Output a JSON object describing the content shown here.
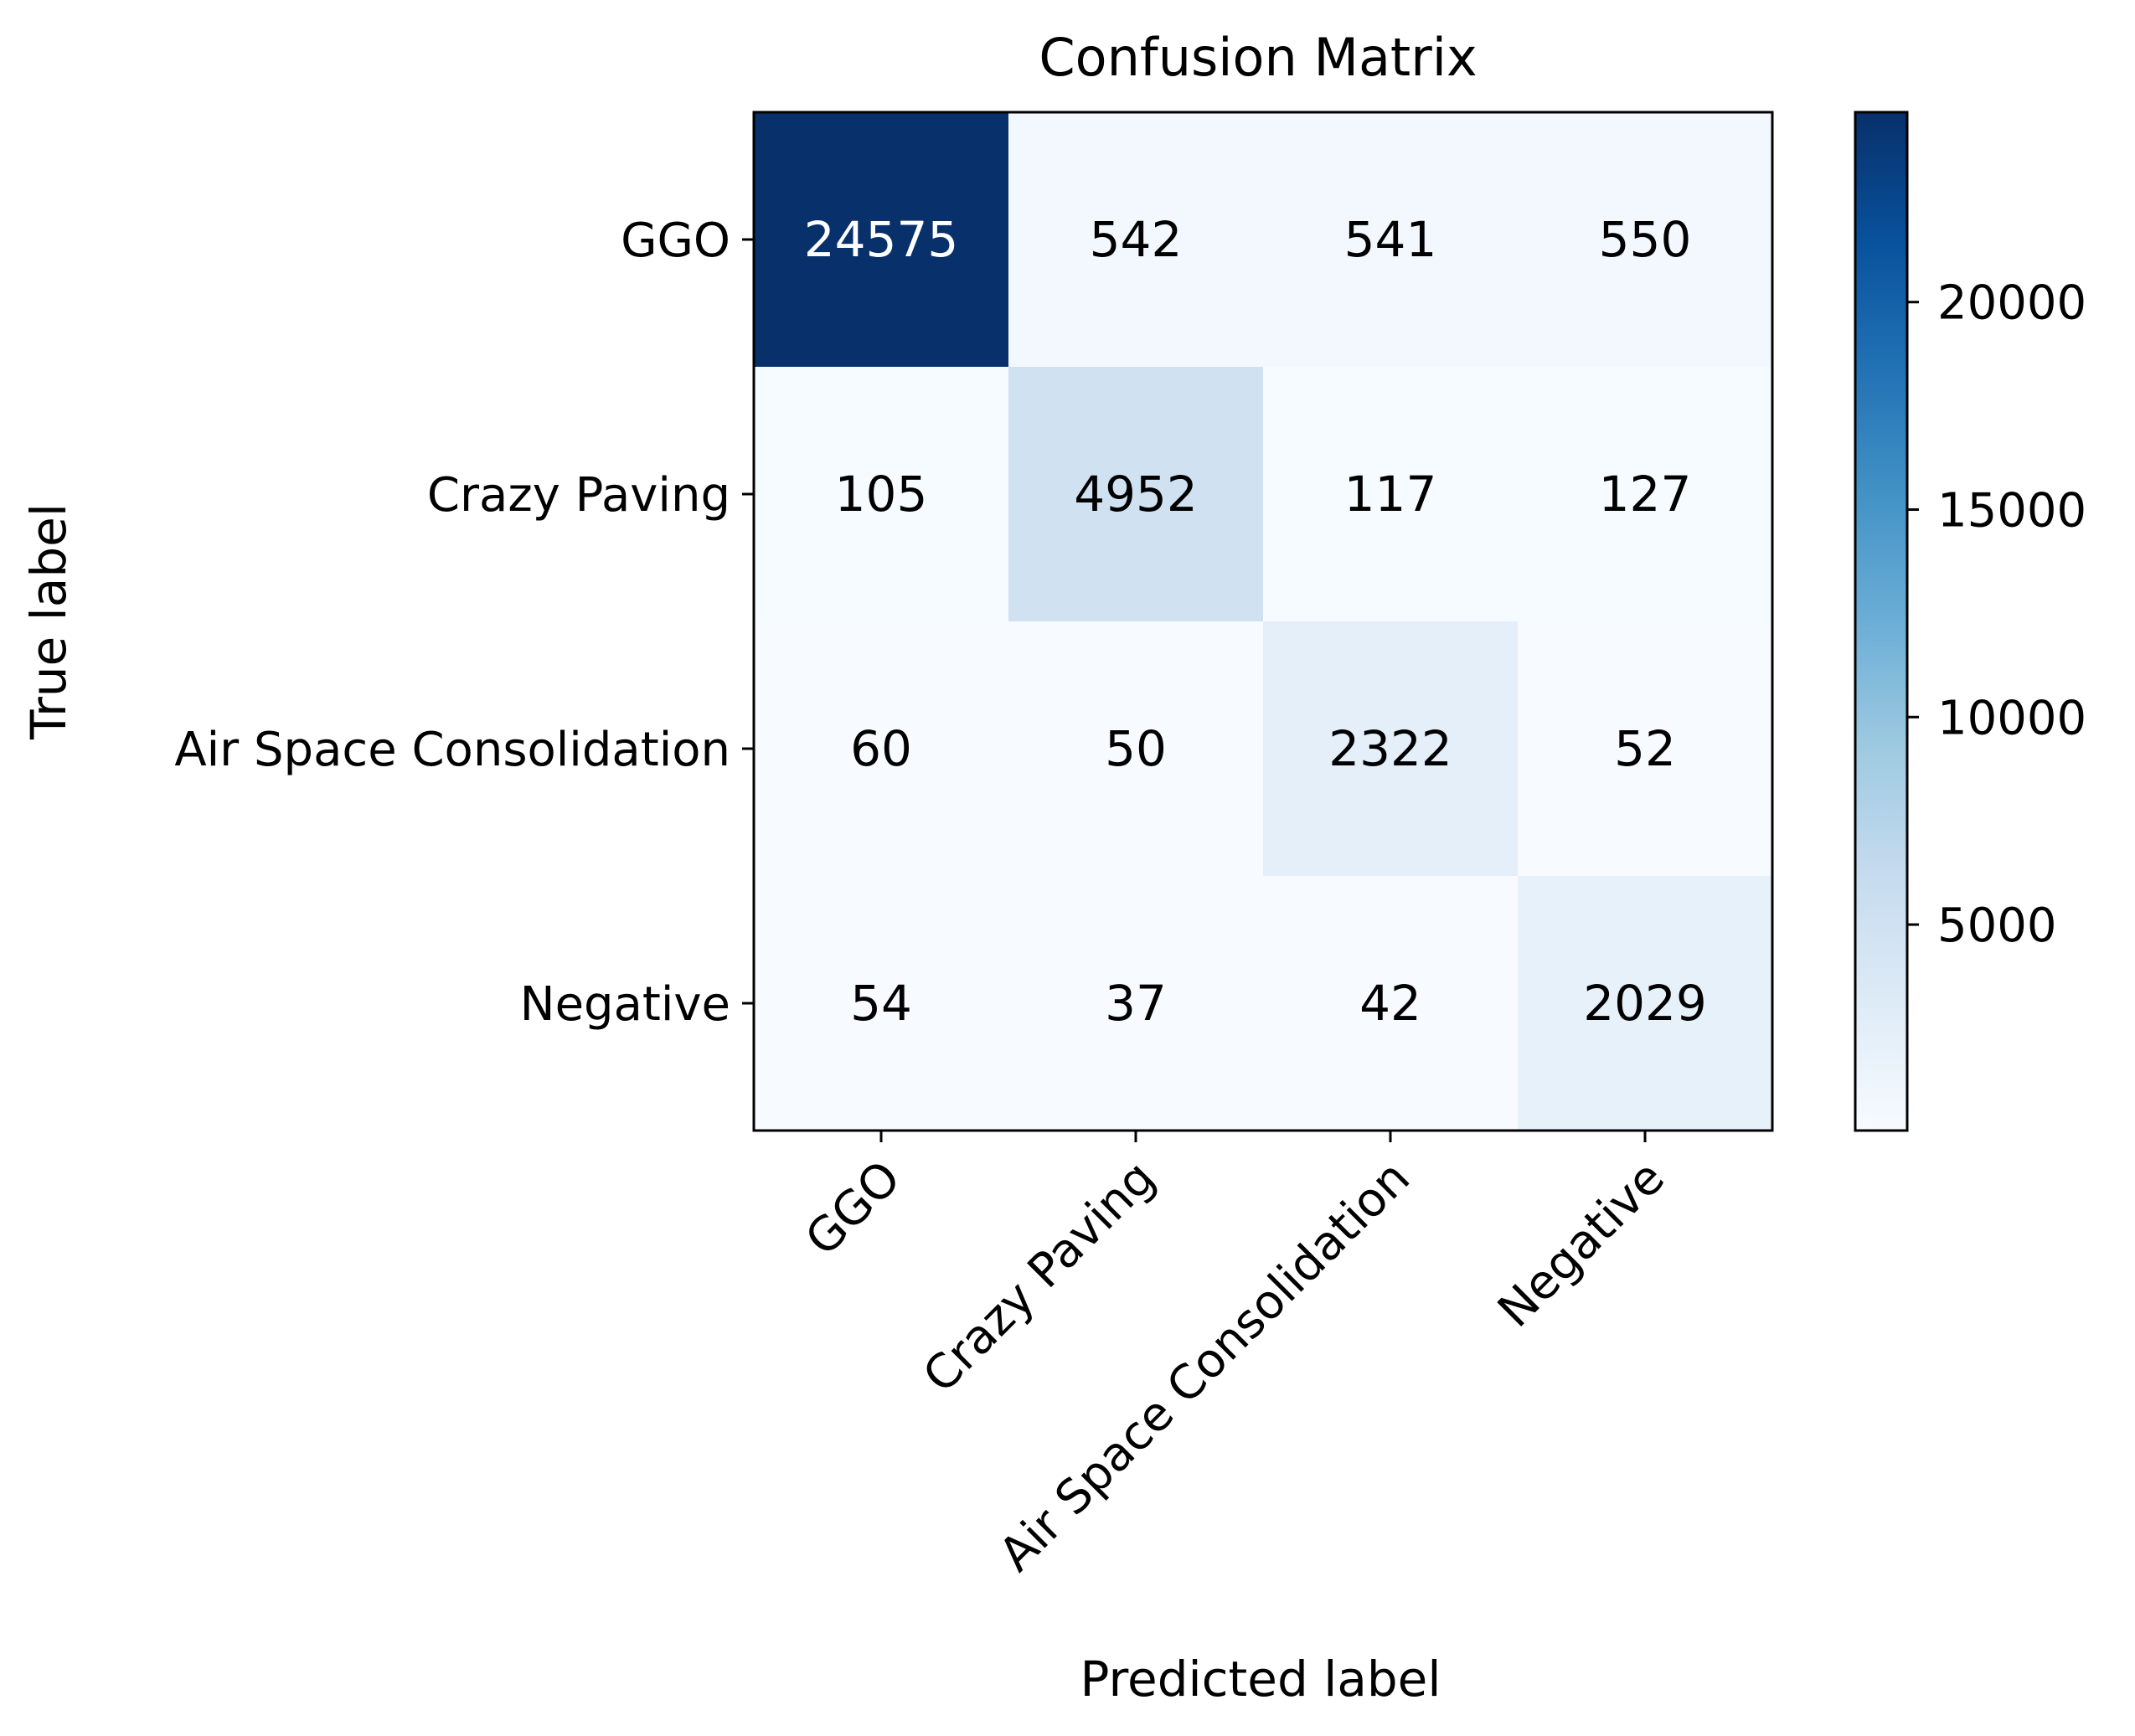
{
  "chart_data": {
    "type": "heatmap",
    "title": "Confusion Matrix",
    "xlabel": "Predicted label",
    "ylabel": "True label",
    "x_categories": [
      "GGO",
      "Crazy Paving",
      "Air Space Consolidation",
      "Negative"
    ],
    "y_categories": [
      "GGO",
      "Crazy Paving",
      "Air Space Consolidation",
      "Negative"
    ],
    "matrix": [
      [
        24575,
        542,
        541,
        550
      ],
      [
        105,
        4952,
        117,
        127
      ],
      [
        60,
        50,
        2322,
        52
      ],
      [
        54,
        37,
        42,
        2029
      ]
    ],
    "colormap": "Blues",
    "colorbar": {
      "range": [
        37,
        24575
      ],
      "ticks": [
        5000,
        10000,
        15000,
        20000
      ],
      "tick_labels": [
        "5000",
        "10000",
        "15000",
        "20000"
      ]
    }
  }
}
